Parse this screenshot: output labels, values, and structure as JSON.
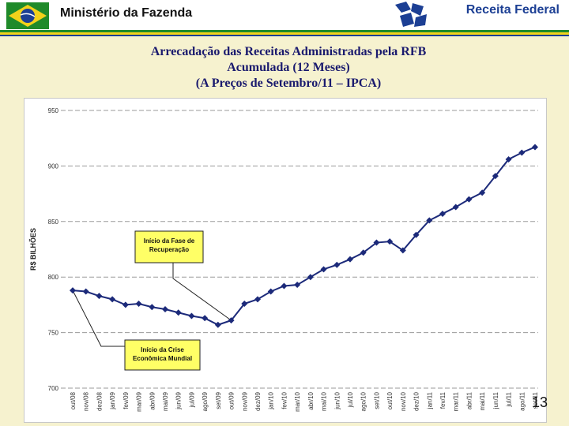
{
  "header": {
    "ministry": "Ministério da Fazenda",
    "agency": "Receita Federal"
  },
  "title_lines": [
    "Arrecadação das Receitas Administradas pela RFB",
    "Acumulada (12 Meses)",
    "(A Preços de Setembro/11 – IPCA)"
  ],
  "page_number": "13",
  "colors": {
    "series": "#1c2a7a",
    "brand_green": "#1f8a2a",
    "brand_yellow": "#f2d21b",
    "brand_blue": "#1c3f94",
    "annotation_fill": "#ffff66",
    "background": "#f6f2cf"
  },
  "chart_data": {
    "type": "line",
    "ylabel": "R$ BILHÕES",
    "ylim": [
      700,
      950
    ],
    "yticks": [
      700,
      750,
      800,
      850,
      900,
      950
    ],
    "grid": "horizontal dashed",
    "categories": [
      "out/08",
      "nov/08",
      "dez/08",
      "jan/09",
      "fev/09",
      "mar/09",
      "abr/09",
      "mai/09",
      "jun/09",
      "jul/09",
      "ago/09",
      "set/09",
      "out/09",
      "nov/09",
      "dez/09",
      "jan/10",
      "fev/10",
      "mar/10",
      "abr/10",
      "mai/10",
      "jun/10",
      "jul/10",
      "ago/10",
      "set/10",
      "out/10",
      "nov/10",
      "dez/10",
      "jan/11",
      "fev/11",
      "mar/11",
      "abr/11",
      "mai/11",
      "jun/11",
      "jul/11",
      "ago/11",
      "set/11"
    ],
    "series": [
      {
        "values": [
          788,
          787,
          783,
          780,
          775,
          776,
          773,
          771,
          768,
          765,
          763,
          757,
          761,
          776,
          780,
          787,
          792,
          793,
          800,
          807,
          811,
          816,
          822,
          831,
          832,
          824,
          838,
          851,
          857,
          863,
          870,
          876,
          891,
          906,
          912,
          917
        ]
      }
    ],
    "annotations": [
      {
        "text_lines": [
          "Início da Fase de",
          "Recuperação"
        ],
        "points_to": "out/09"
      },
      {
        "text_lines": [
          "Início da Crise",
          "Econômica Mundial"
        ],
        "points_to": "out/08"
      }
    ]
  }
}
